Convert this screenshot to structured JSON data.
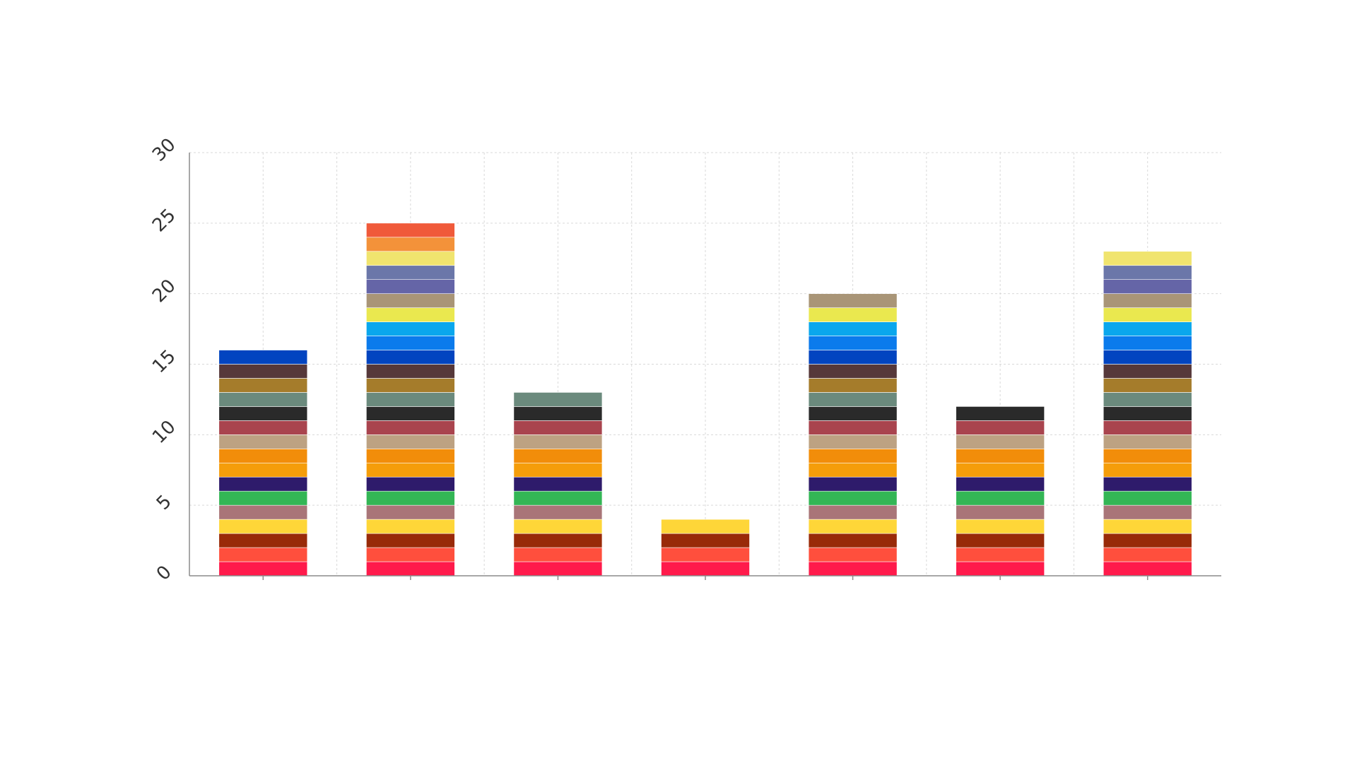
{
  "chart_data": {
    "type": "bar",
    "stacked": true,
    "categories": [
      "",
      "",
      "",
      "",
      "",
      "",
      ""
    ],
    "ylim": [
      0,
      30
    ],
    "yticks": [
      "0",
      "5",
      "10",
      "15",
      "20",
      "25",
      "30"
    ],
    "grid": true,
    "title": "",
    "xlabel": "",
    "ylabel": "",
    "totals": [
      16,
      25,
      13,
      4,
      20,
      12,
      23
    ],
    "segment_value": 1,
    "segment_colors": [
      "#ff1a4b",
      "#ff4f3d",
      "#992a08",
      "#fed638",
      "#a97578",
      "#33b655",
      "#2e1b6b",
      "#f59d0a",
      "#f28d0a",
      "#bda282",
      "#a9444e",
      "#2a2a2a",
      "#6b8a7d",
      "#a57c2b",
      "#56383a",
      "#0244c0",
      "#0b7bec",
      "#0aa7ed",
      "#eae84f",
      "#a99577",
      "#6565a7",
      "#6b77a9",
      "#f0e46e",
      "#f3923a",
      "#f05a3a"
    ]
  }
}
